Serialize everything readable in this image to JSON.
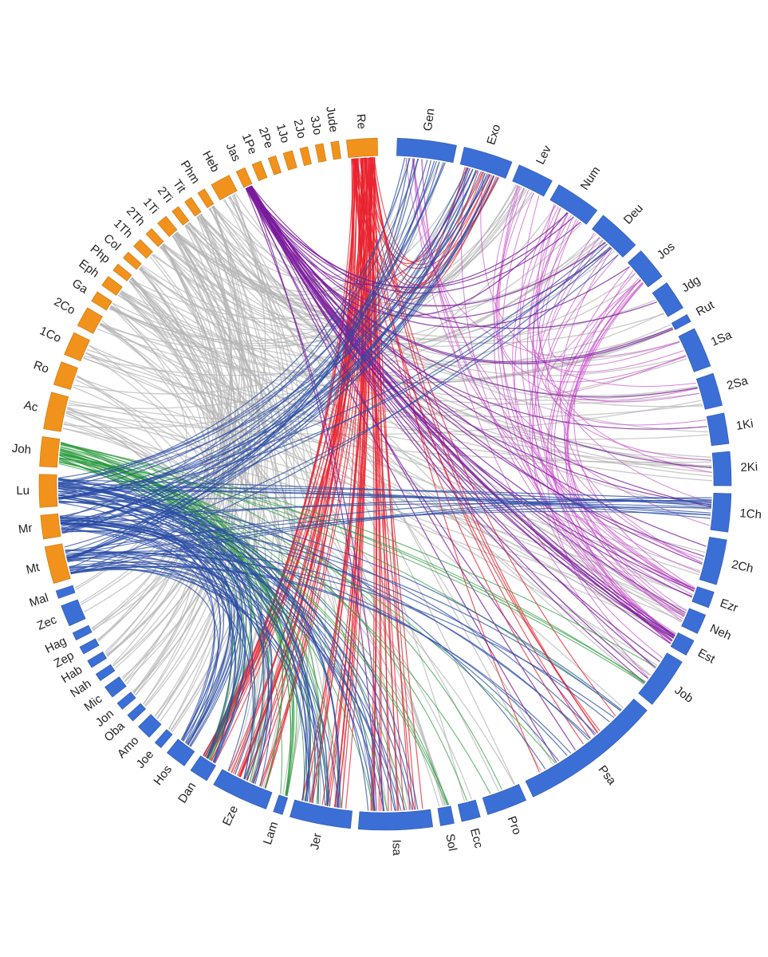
{
  "books": [
    "Gen",
    "Exo",
    "Lev",
    "Num",
    "Deu",
    "Jos",
    "Jdg",
    "Rut",
    "1Sa",
    "2Sa",
    "1Ki",
    "2Ki",
    "1Ch",
    "2Ch",
    "Ezr",
    "Neh",
    "Est",
    "Job",
    "Psa",
    "Pro",
    "Ecc",
    "Sol",
    "Isa",
    "Jer",
    "Lam",
    "Eze",
    "Dan",
    "Hos",
    "Joe",
    "Amo",
    "Oba",
    "Jon",
    "Mic",
    "Nah",
    "Hab",
    "Zep",
    "Hag",
    "Zec",
    "Mal",
    "Mt",
    "Mr",
    "Lu",
    "Joh",
    "Ac",
    "Ro",
    "1Co",
    "2Co",
    "Ga",
    "Eph",
    "Php",
    "Col",
    "1Th",
    "2Th",
    "1Ti",
    "2Ti",
    "Tit",
    "Phm",
    "Heb",
    "Jas",
    "1Pe",
    "2Pe",
    "1Jo",
    "2Jo",
    "3Jo",
    "Jude",
    "Re"
  ]
}
